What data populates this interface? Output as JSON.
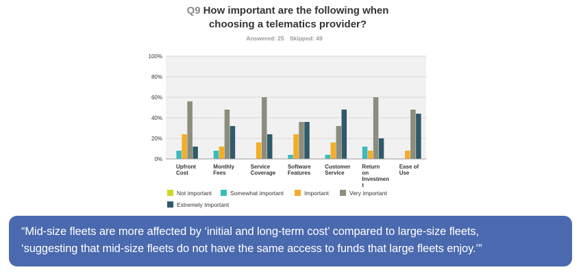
{
  "header": {
    "question_number": "Q9",
    "question_text_line1": "How important are the following when",
    "question_text_line2": "choosing a telematics provider?",
    "answered": "Answered: 25",
    "skipped": "Skipped: 49"
  },
  "legend": {
    "items": [
      {
        "label": "Not important",
        "color": "#cfd82a"
      },
      {
        "label": "Somewhat important",
        "color": "#3bbcbc"
      },
      {
        "label": "Important",
        "color": "#f2ad29"
      },
      {
        "label": "Very important",
        "color": "#8c8d7c"
      },
      {
        "label": "Extremely Important",
        "color": "#2f5a6a"
      }
    ]
  },
  "quote": {
    "line1": "“Mid-size fleets are more affected by ‘initial and long-term cost’ compared to large-size fleets,",
    "line2": "‘suggesting that mid-size fleets do not have the same access to funds that large fleets enjoy.’”"
  },
  "colors": {
    "quote_background": "#4a69ae",
    "plot_background": "#f1f1f1"
  },
  "chart_data": {
    "type": "bar",
    "categories": [
      [
        "Upfront",
        "Cost"
      ],
      [
        "Monthly",
        "Fees"
      ],
      [
        "Service",
        "Coverage"
      ],
      [
        "Software",
        "Features"
      ],
      [
        "Customer",
        "Service"
      ],
      [
        "Return",
        "on",
        "Investmen",
        "t"
      ],
      [
        "Ease of",
        "Use"
      ]
    ],
    "series": [
      {
        "name": "Not important",
        "values": [
          0,
          0,
          0,
          0,
          0,
          0,
          0
        ]
      },
      {
        "name": "Somewhat important",
        "values": [
          8,
          8,
          0,
          4,
          4,
          12,
          0
        ]
      },
      {
        "name": "Important",
        "values": [
          24,
          12,
          16,
          24,
          16,
          8,
          8
        ]
      },
      {
        "name": "Very important",
        "values": [
          56,
          48,
          60,
          36,
          32,
          60,
          48
        ]
      },
      {
        "name": "Extremely Important",
        "values": [
          12,
          32,
          24,
          36,
          48,
          20,
          44
        ]
      }
    ],
    "y_ticks": [
      "0%",
      "20%",
      "40%",
      "60%",
      "80%",
      "100%"
    ],
    "ylim": [
      0,
      100
    ],
    "grid": true,
    "legend_position": "bottom"
  }
}
